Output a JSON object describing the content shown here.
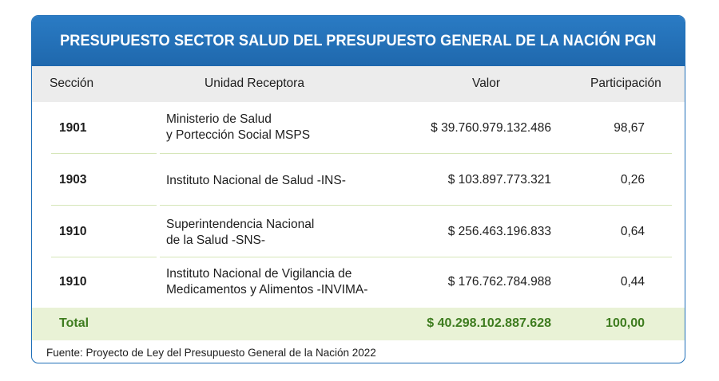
{
  "title": "PRESUPUESTO SECTOR SALUD DEL PRESUPUESTO GENERAL DE LA NACIÓN PGN",
  "header": {
    "seccion": "Sección",
    "unidad": "Unidad Receptora",
    "valor": "Valor",
    "participacion": "Participación"
  },
  "rows": [
    {
      "seccion": "1901",
      "unidad_line1": "Ministerio de Salud",
      "unidad_line2": "y Portección Social MSPS",
      "valor": "$ 39.760.979.132.486",
      "participacion": "98,67"
    },
    {
      "seccion": "1903",
      "unidad_line1": "Instituto Nacional de Salud -INS-",
      "unidad_line2": "",
      "valor": "$ 103.897.773.321",
      "participacion": "0,26"
    },
    {
      "seccion": "1910",
      "unidad_line1": "Superintendencia Nacional",
      "unidad_line2": "de la Salud -SNS-",
      "valor": "$ 256.463.196.833",
      "participacion": "0,64"
    },
    {
      "seccion": "1910",
      "unidad_line1": "Instituto Nacional de Vigilancia de",
      "unidad_line2": "Medicamentos y Alimentos -INVIMA-",
      "valor": "$ 176.762.784.988",
      "participacion": "0,44"
    }
  ],
  "total": {
    "label": "Total",
    "valor": "$ 40.298.102.887.628",
    "participacion": "100,00"
  },
  "source": "Fuente: Proyecto de Ley del Presupuesto General de la Nación 2022",
  "colors": {
    "title_bar": "#1f6fb8",
    "header_row": "#ececec",
    "total_row": "#e9f2d6",
    "total_text": "#3e7c1f",
    "separator": "#d5e6b8"
  }
}
